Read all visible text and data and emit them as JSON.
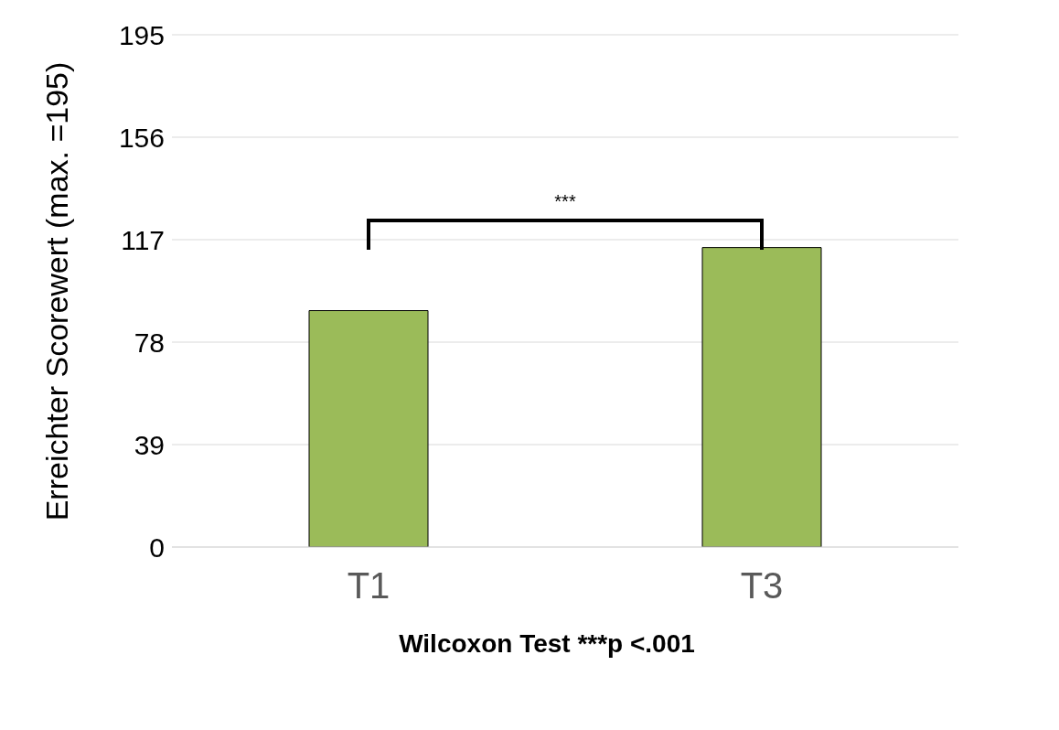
{
  "chart_data": {
    "type": "bar",
    "ylabel": "Erreichter Scorewert (max. =195)",
    "xlabel": "Wilcoxon Test ***p <.001",
    "categories": [
      "T1",
      "T3"
    ],
    "values": [
      90,
      114
    ],
    "color": "#9bbb59",
    "ylim": [
      0,
      195
    ],
    "yticks": [
      0,
      39,
      78,
      117,
      156,
      195
    ],
    "grid": "y",
    "annotations": [
      "***"
    ]
  }
}
